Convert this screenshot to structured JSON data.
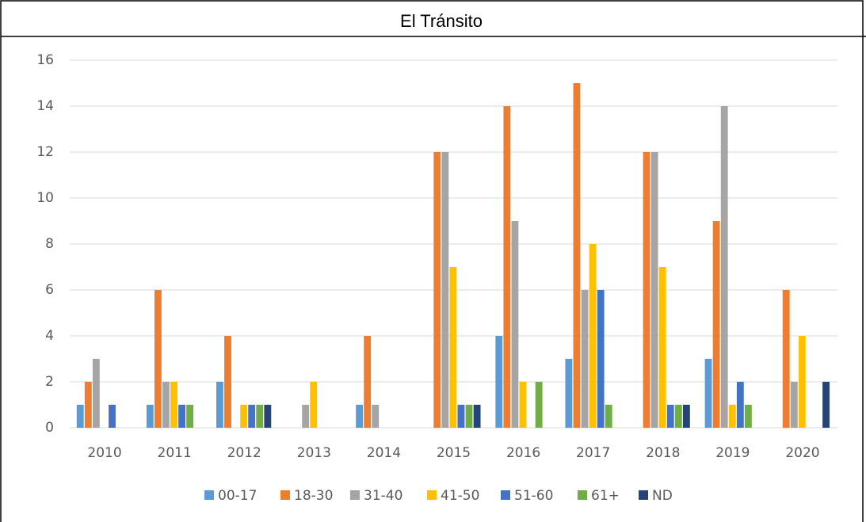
{
  "chart_data": {
    "type": "bar",
    "title": "El Tránsito",
    "categories": [
      "2010",
      "2011",
      "2012",
      "2013",
      "2014",
      "2015",
      "2016",
      "2017",
      "2018",
      "2019",
      "2020"
    ],
    "series": [
      {
        "name": "00-17",
        "color": "#5b9bd5",
        "values": [
          1,
          1,
          2,
          0,
          1,
          0,
          4,
          3,
          0,
          3,
          0
        ]
      },
      {
        "name": "18-30",
        "color": "#ed7d31",
        "values": [
          2,
          6,
          4,
          0,
          4,
          12,
          14,
          15,
          12,
          9,
          6
        ]
      },
      {
        "name": "31-40",
        "color": "#a5a5a5",
        "values": [
          3,
          2,
          0,
          1,
          1,
          12,
          9,
          6,
          12,
          14,
          2
        ]
      },
      {
        "name": "41-50",
        "color": "#ffc000",
        "values": [
          0,
          2,
          1,
          2,
          0,
          7,
          2,
          8,
          7,
          1,
          4
        ]
      },
      {
        "name": "51-60",
        "color": "#4472c4",
        "values": [
          1,
          1,
          1,
          0,
          0,
          1,
          0,
          6,
          1,
          2,
          0
        ]
      },
      {
        "name": "61+",
        "color": "#70ad47",
        "values": [
          0,
          1,
          1,
          0,
          0,
          1,
          2,
          1,
          1,
          1,
          0
        ]
      },
      {
        "name": "ND",
        "color": "#264478",
        "values": [
          0,
          0,
          1,
          0,
          0,
          1,
          0,
          0,
          1,
          0,
          2
        ]
      }
    ],
    "ylim": [
      0,
      16
    ],
    "yticks": [
      0,
      2,
      4,
      6,
      8,
      10,
      12,
      14,
      16
    ],
    "grid": true,
    "legend": "bottom"
  }
}
